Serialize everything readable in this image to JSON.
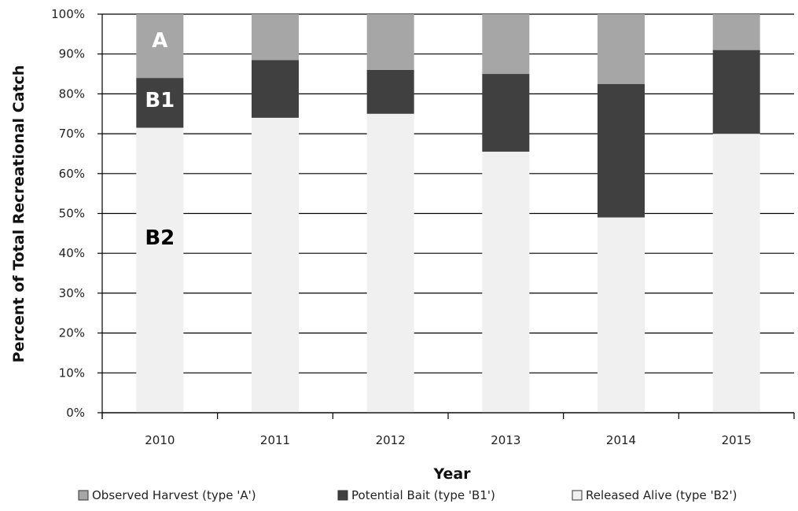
{
  "chart_data": {
    "type": "bar",
    "stacked": true,
    "categories": [
      "2010",
      "2011",
      "2012",
      "2013",
      "2014",
      "2015"
    ],
    "series": [
      {
        "name": "Released Alive (type 'B2')",
        "values": [
          71.5,
          74.0,
          75.0,
          65.5,
          49.0,
          70.0
        ],
        "color": "#f0f0f0"
      },
      {
        "name": "Potential Bait (type 'B1')",
        "values": [
          12.5,
          14.5,
          11.0,
          19.5,
          33.5,
          21.0
        ],
        "color": "#404040"
      },
      {
        "name": "Observed Harvest (type 'A')",
        "values": [
          16.0,
          11.5,
          14.0,
          15.0,
          17.5,
          9.0
        ],
        "color": "#a6a6a6"
      }
    ],
    "legend_order": [
      2,
      1,
      0
    ],
    "xlabel": "Year",
    "ylabel": "Percent of Total Recreational Catch",
    "ylim": [
      0,
      100
    ],
    "yticks": [
      "0%",
      "10%",
      "20%",
      "30%",
      "40%",
      "50%",
      "60%",
      "70%",
      "80%",
      "90%",
      "100%"
    ],
    "grid": true,
    "legend_position": "bottom",
    "annotations": [
      {
        "text": "A",
        "category": "2010",
        "y": 93.5,
        "color": "#ffffff"
      },
      {
        "text": "B1",
        "category": "2010",
        "y": 78.5,
        "color": "#ffffff"
      },
      {
        "text": "B2",
        "category": "2010",
        "y": 44,
        "color": "#000000"
      }
    ]
  }
}
